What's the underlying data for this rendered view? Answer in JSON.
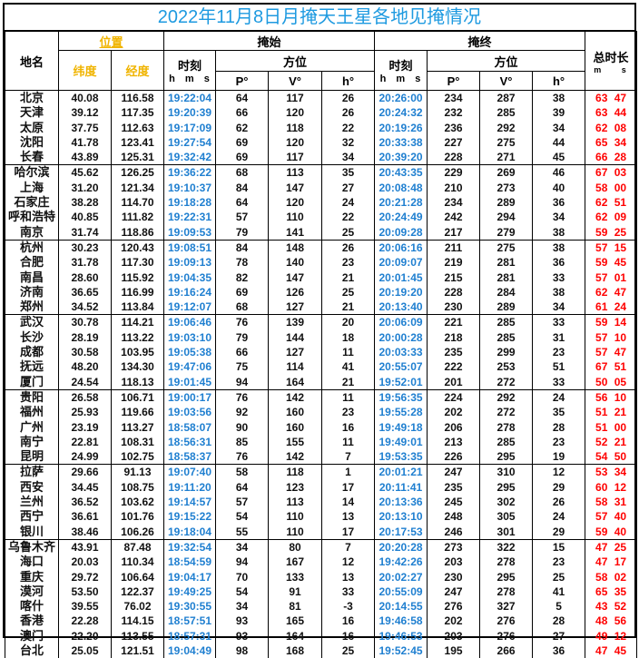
{
  "title": "2022年11月8日月掩天王星各地见掩情况",
  "headers": {
    "place": "地名",
    "position": "位置",
    "latitude": "纬度",
    "longitude": "经度",
    "start": "掩始",
    "end": "掩终",
    "time": "时刻",
    "hms": "h m s",
    "azimuth": "方位",
    "p": "P°",
    "v": "V°",
    "h": "h°",
    "duration": "总时长",
    "duration_units": "m s"
  },
  "colors": {
    "title": "#1e9ae0",
    "time": "#1f7fd0",
    "position_header": "#f0b400",
    "duration": "#ff0000"
  },
  "rows": [
    {
      "name": "北京",
      "lat": "40.08",
      "lon": "116.58",
      "t1": "19:22:04",
      "p1": "64",
      "v1": "117",
      "h1": "26",
      "t2": "20:26:00",
      "p2": "234",
      "v2": "287",
      "h2": "38",
      "dur": "63 47"
    },
    {
      "name": "天津",
      "lat": "39.12",
      "lon": "117.35",
      "t1": "19:20:39",
      "p1": "66",
      "v1": "120",
      "h1": "26",
      "t2": "20:24:32",
      "p2": "232",
      "v2": "285",
      "h2": "39",
      "dur": "63 44"
    },
    {
      "name": "太原",
      "lat": "37.75",
      "lon": "112.63",
      "t1": "19:17:09",
      "p1": "62",
      "v1": "118",
      "h1": "22",
      "t2": "20:19:26",
      "p2": "236",
      "v2": "292",
      "h2": "34",
      "dur": "62 08"
    },
    {
      "name": "沈阳",
      "lat": "41.78",
      "lon": "123.41",
      "t1": "19:27:54",
      "p1": "69",
      "v1": "120",
      "h1": "32",
      "t2": "20:33:38",
      "p2": "227",
      "v2": "275",
      "h2": "44",
      "dur": "65 34"
    },
    {
      "name": "长春",
      "lat": "43.89",
      "lon": "125.31",
      "t1": "19:32:42",
      "p1": "69",
      "v1": "117",
      "h1": "34",
      "t2": "20:39:20",
      "p2": "228",
      "v2": "271",
      "h2": "45",
      "dur": "66 28"
    },
    {
      "name": "哈尔滨",
      "lat": "45.62",
      "lon": "126.25",
      "t1": "19:36:22",
      "p1": "68",
      "v1": "113",
      "h1": "35",
      "t2": "20:43:35",
      "p2": "229",
      "v2": "269",
      "h2": "46",
      "dur": "67 03"
    },
    {
      "name": "上海",
      "lat": "31.20",
      "lon": "121.34",
      "t1": "19:10:37",
      "p1": "84",
      "v1": "147",
      "h1": "27",
      "t2": "20:08:48",
      "p2": "210",
      "v2": "273",
      "h2": "40",
      "dur": "58 00"
    },
    {
      "name": "石家庄",
      "lat": "38.28",
      "lon": "114.70",
      "t1": "19:18:28",
      "p1": "64",
      "v1": "120",
      "h1": "24",
      "t2": "20:21:28",
      "p2": "234",
      "v2": "289",
      "h2": "36",
      "dur": "62 51"
    },
    {
      "name": "呼和浩特",
      "lat": "40.85",
      "lon": "111.82",
      "t1": "19:22:31",
      "p1": "57",
      "v1": "110",
      "h1": "22",
      "t2": "20:24:49",
      "p2": "242",
      "v2": "294",
      "h2": "34",
      "dur": "62 09"
    },
    {
      "name": "南京",
      "lat": "31.74",
      "lon": "118.86",
      "t1": "19:09:53",
      "p1": "79",
      "v1": "141",
      "h1": "25",
      "t2": "20:09:28",
      "p2": "217",
      "v2": "279",
      "h2": "38",
      "dur": "59 25"
    },
    {
      "name": "杭州",
      "lat": "30.23",
      "lon": "120.43",
      "t1": "19:08:51",
      "p1": "84",
      "v1": "148",
      "h1": "26",
      "t2": "20:06:16",
      "p2": "211",
      "v2": "275",
      "h2": "38",
      "dur": "57 15"
    },
    {
      "name": "合肥",
      "lat": "31.78",
      "lon": "117.30",
      "t1": "19:09:13",
      "p1": "78",
      "v1": "140",
      "h1": "23",
      "t2": "20:09:07",
      "p2": "219",
      "v2": "281",
      "h2": "36",
      "dur": "59 45"
    },
    {
      "name": "南昌",
      "lat": "28.60",
      "lon": "115.92",
      "t1": "19:04:35",
      "p1": "82",
      "v1": "147",
      "h1": "21",
      "t2": "20:01:45",
      "p2": "215",
      "v2": "281",
      "h2": "33",
      "dur": "57 01"
    },
    {
      "name": "济南",
      "lat": "36.65",
      "lon": "116.99",
      "t1": "19:16:24",
      "p1": "69",
      "v1": "126",
      "h1": "25",
      "t2": "20:19:20",
      "p2": "228",
      "v2": "284",
      "h2": "38",
      "dur": "62 47"
    },
    {
      "name": "郑州",
      "lat": "34.52",
      "lon": "113.84",
      "t1": "19:12:07",
      "p1": "68",
      "v1": "127",
      "h1": "21",
      "t2": "20:13:40",
      "p2": "230",
      "v2": "289",
      "h2": "34",
      "dur": "61 24"
    },
    {
      "name": "武汉",
      "lat": "30.78",
      "lon": "114.21",
      "t1": "19:06:46",
      "p1": "76",
      "v1": "139",
      "h1": "20",
      "t2": "20:06:09",
      "p2": "221",
      "v2": "285",
      "h2": "33",
      "dur": "59 14"
    },
    {
      "name": "长沙",
      "lat": "28.19",
      "lon": "113.22",
      "t1": "19:03:10",
      "p1": "79",
      "v1": "144",
      "h1": "18",
      "t2": "20:00:28",
      "p2": "218",
      "v2": "285",
      "h2": "31",
      "dur": "57 10"
    },
    {
      "name": "成都",
      "lat": "30.58",
      "lon": "103.95",
      "t1": "19:05:38",
      "p1": "66",
      "v1": "127",
      "h1": "11",
      "t2": "20:03:33",
      "p2": "235",
      "v2": "299",
      "h2": "23",
      "dur": "57 47"
    },
    {
      "name": "抚远",
      "lat": "48.20",
      "lon": "134.30",
      "t1": "19:47:06",
      "p1": "75",
      "v1": "114",
      "h1": "41",
      "t2": "20:55:07",
      "p2": "222",
      "v2": "253",
      "h2": "51",
      "dur": "67 51"
    },
    {
      "name": "厦门",
      "lat": "24.54",
      "lon": "118.13",
      "t1": "19:01:45",
      "p1": "94",
      "v1": "164",
      "h1": "21",
      "t2": "19:52:01",
      "p2": "201",
      "v2": "272",
      "h2": "33",
      "dur": "50 05"
    },
    {
      "name": "贵阳",
      "lat": "26.58",
      "lon": "106.71",
      "t1": "19:00:17",
      "p1": "76",
      "v1": "142",
      "h1": "11",
      "t2": "19:56:35",
      "p2": "224",
      "v2": "292",
      "h2": "24",
      "dur": "56 10"
    },
    {
      "name": "福州",
      "lat": "25.93",
      "lon": "119.66",
      "t1": "19:03:56",
      "p1": "92",
      "v1": "160",
      "h1": "23",
      "t2": "19:55:28",
      "p2": "202",
      "v2": "272",
      "h2": "35",
      "dur": "51 21"
    },
    {
      "name": "广州",
      "lat": "23.19",
      "lon": "113.27",
      "t1": "18:58:07",
      "p1": "90",
      "v1": "160",
      "h1": "16",
      "t2": "19:49:18",
      "p2": "206",
      "v2": "278",
      "h2": "28",
      "dur": "51 00"
    },
    {
      "name": "南宁",
      "lat": "22.81",
      "lon": "108.31",
      "t1": "18:56:31",
      "p1": "85",
      "v1": "155",
      "h1": "11",
      "t2": "19:49:01",
      "p2": "213",
      "v2": "285",
      "h2": "23",
      "dur": "52 21"
    },
    {
      "name": "昆明",
      "lat": "24.99",
      "lon": "102.75",
      "t1": "18:58:37",
      "p1": "76",
      "v1": "142",
      "h1": "7",
      "t2": "19:53:35",
      "p2": "226",
      "v2": "295",
      "h2": "19",
      "dur": "54 50"
    },
    {
      "name": "拉萨",
      "lat": "29.66",
      "lon": "91.13",
      "t1": "19:07:40",
      "p1": "58",
      "v1": "118",
      "h1": "1",
      "t2": "20:01:21",
      "p2": "247",
      "v2": "310",
      "h2": "12",
      "dur": "53 34"
    },
    {
      "name": "西安",
      "lat": "34.45",
      "lon": "108.75",
      "t1": "19:11:20",
      "p1": "64",
      "v1": "123",
      "h1": "17",
      "t2": "20:11:41",
      "p2": "235",
      "v2": "295",
      "h2": "29",
      "dur": "60 12"
    },
    {
      "name": "兰州",
      "lat": "36.52",
      "lon": "103.62",
      "t1": "19:14:57",
      "p1": "57",
      "v1": "113",
      "h1": "14",
      "t2": "20:13:36",
      "p2": "245",
      "v2": "302",
      "h2": "26",
      "dur": "58 31"
    },
    {
      "name": "西宁",
      "lat": "36.61",
      "lon": "101.76",
      "t1": "19:15:22",
      "p1": "54",
      "v1": "110",
      "h1": "13",
      "t2": "20:13:10",
      "p2": "248",
      "v2": "305",
      "h2": "24",
      "dur": "57 40"
    },
    {
      "name": "银川",
      "lat": "38.46",
      "lon": "106.26",
      "t1": "19:18:04",
      "p1": "55",
      "v1": "110",
      "h1": "17",
      "t2": "20:17:53",
      "p2": "246",
      "v2": "301",
      "h2": "29",
      "dur": "59 40"
    },
    {
      "name": "乌鲁木齐",
      "lat": "43.91",
      "lon": "87.48",
      "t1": "19:32:54",
      "p1": "34",
      "v1": "80",
      "h1": "7",
      "t2": "20:20:28",
      "p2": "273",
      "v2": "322",
      "h2": "15",
      "dur": "47 25"
    },
    {
      "name": "海口",
      "lat": "20.03",
      "lon": "110.34",
      "t1": "18:54:59",
      "p1": "94",
      "v1": "167",
      "h1": "12",
      "t2": "19:42:26",
      "p2": "203",
      "v2": "278",
      "h2": "23",
      "dur": "47 17"
    },
    {
      "name": "重庆",
      "lat": "29.72",
      "lon": "106.64",
      "t1": "19:04:17",
      "p1": "70",
      "v1": "133",
      "h1": "13",
      "t2": "20:02:27",
      "p2": "230",
      "v2": "295",
      "h2": "25",
      "dur": "58 02"
    },
    {
      "name": "漠河",
      "lat": "53.50",
      "lon": "122.37",
      "t1": "19:49:25",
      "p1": "54",
      "v1": "91",
      "h1": "33",
      "t2": "20:55:09",
      "p2": "247",
      "v2": "278",
      "h2": "41",
      "dur": "65 35"
    },
    {
      "name": "喀什",
      "lat": "39.55",
      "lon": "76.02",
      "t1": "19:30:55",
      "p1": "34",
      "v1": "81",
      "h1": "-3",
      "t2": "20:14:55",
      "p2": "276",
      "v2": "327",
      "h2": "5",
      "dur": "43 52"
    },
    {
      "name": "香港",
      "lat": "22.28",
      "lon": "114.15",
      "t1": "18:57:51",
      "p1": "93",
      "v1": "165",
      "h1": "16",
      "t2": "19:46:58",
      "p2": "202",
      "v2": "276",
      "h2": "28",
      "dur": "48 56"
    },
    {
      "name": "澳门",
      "lat": "22.20",
      "lon": "113.55",
      "t1": "18:57:31",
      "p1": "93",
      "v1": "164",
      "h1": "16",
      "t2": "19:46:53",
      "p2": "203",
      "v2": "276",
      "h2": "27",
      "dur": "49 12"
    },
    {
      "name": "台北",
      "lat": "25.05",
      "lon": "121.51",
      "t1": "19:04:49",
      "p1": "98",
      "v1": "168",
      "h1": "25",
      "t2": "19:52:45",
      "p2": "195",
      "v2": "266",
      "h2": "36",
      "dur": "47 45"
    }
  ]
}
